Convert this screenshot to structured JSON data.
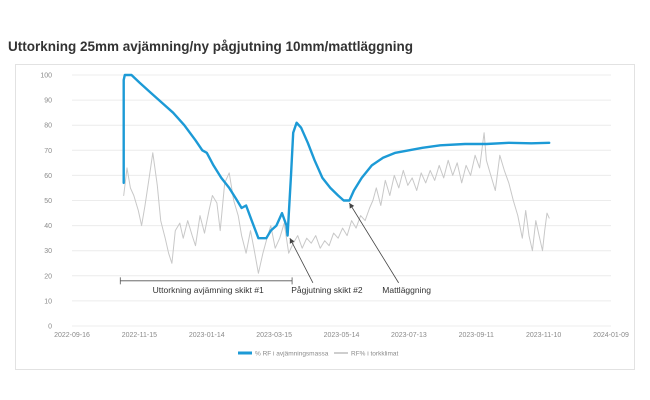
{
  "title": "Uttorkning 25mm avjämning/ny pågjutning 10mm/mattläggning",
  "chart_data": {
    "type": "line",
    "title": "Uttorkning 25mm avjämning/ny pågjutning 10mm/mattläggning",
    "xlabel": "",
    "ylabel": "",
    "xlim": [
      "2022-09-16",
      "2024-01-09"
    ],
    "ylim": [
      0,
      100
    ],
    "grid": true,
    "x_ticks": [
      "2022-09-16",
      "2022-11-15",
      "2023-01-14",
      "2023-03-15",
      "2023-05-14",
      "2023-07-13",
      "2023-09-11",
      "2023-11-10",
      "2024-01-09"
    ],
    "y_ticks": [
      0,
      10,
      20,
      30,
      40,
      50,
      60,
      70,
      80,
      90,
      100
    ],
    "legend_position": "bottom",
    "series": [
      {
        "name": "% RF i avjämningsmassa",
        "color": "#1c9ad6",
        "points": [
          [
            "2022-11-01",
            57
          ],
          [
            "2022-11-01",
            98
          ],
          [
            "2022-11-02",
            100
          ],
          [
            "2022-11-08",
            100
          ],
          [
            "2022-11-15",
            97
          ],
          [
            "2022-11-25",
            93
          ],
          [
            "2022-12-05",
            89
          ],
          [
            "2022-12-15",
            85
          ],
          [
            "2022-12-25",
            80
          ],
          [
            "2023-01-04",
            74
          ],
          [
            "2023-01-10",
            70
          ],
          [
            "2023-01-14",
            69
          ],
          [
            "2023-01-20",
            64
          ],
          [
            "2023-01-27",
            59
          ],
          [
            "2023-02-03",
            55
          ],
          [
            "2023-02-10",
            50
          ],
          [
            "2023-02-14",
            47
          ],
          [
            "2023-02-18",
            48
          ],
          [
            "2023-02-23",
            42
          ],
          [
            "2023-03-01",
            35
          ],
          [
            "2023-03-08",
            35
          ],
          [
            "2023-03-12",
            38
          ],
          [
            "2023-03-17",
            40
          ],
          [
            "2023-03-22",
            45
          ],
          [
            "2023-03-26",
            40
          ],
          [
            "2023-03-27",
            36
          ],
          [
            "2023-03-28",
            44
          ],
          [
            "2023-03-30",
            60
          ],
          [
            "2023-04-01",
            77
          ],
          [
            "2023-04-04",
            81
          ],
          [
            "2023-04-08",
            79
          ],
          [
            "2023-04-14",
            73
          ],
          [
            "2023-04-20",
            66
          ],
          [
            "2023-04-27",
            59
          ],
          [
            "2023-05-04",
            55
          ],
          [
            "2023-05-11",
            52
          ],
          [
            "2023-05-16",
            50
          ],
          [
            "2023-05-21",
            50
          ],
          [
            "2023-05-25",
            54
          ],
          [
            "2023-06-01",
            59
          ],
          [
            "2023-06-10",
            64
          ],
          [
            "2023-06-20",
            67
          ],
          [
            "2023-07-01",
            69
          ],
          [
            "2023-07-13",
            70
          ],
          [
            "2023-07-25",
            71
          ],
          [
            "2023-08-10",
            72
          ],
          [
            "2023-09-01",
            72.5
          ],
          [
            "2023-09-20",
            72.5
          ],
          [
            "2023-10-10",
            73
          ],
          [
            "2023-10-30",
            72.8
          ],
          [
            "2023-11-15",
            73
          ]
        ]
      },
      {
        "name": "RF% i torkklimat",
        "color": "#c8c8c8",
        "points": [
          [
            "2022-11-01",
            52
          ],
          [
            "2022-11-04",
            63
          ],
          [
            "2022-11-07",
            55
          ],
          [
            "2022-11-10",
            52
          ],
          [
            "2022-11-14",
            46
          ],
          [
            "2022-11-17",
            40
          ],
          [
            "2022-11-20",
            48
          ],
          [
            "2022-11-24",
            60
          ],
          [
            "2022-11-27",
            69
          ],
          [
            "2022-12-01",
            56
          ],
          [
            "2022-12-04",
            42
          ],
          [
            "2022-12-08",
            35
          ],
          [
            "2022-12-11",
            29
          ],
          [
            "2022-12-14",
            25
          ],
          [
            "2022-12-17",
            38
          ],
          [
            "2022-12-21",
            41
          ],
          [
            "2022-12-24",
            35
          ],
          [
            "2022-12-28",
            42
          ],
          [
            "2023-01-01",
            36
          ],
          [
            "2023-01-04",
            32
          ],
          [
            "2023-01-08",
            44
          ],
          [
            "2023-01-12",
            37
          ],
          [
            "2023-01-16",
            46
          ],
          [
            "2023-01-19",
            52
          ],
          [
            "2023-01-23",
            49
          ],
          [
            "2023-01-26",
            38
          ],
          [
            "2023-01-30",
            57
          ],
          [
            "2023-02-03",
            61
          ],
          [
            "2023-02-07",
            50
          ],
          [
            "2023-02-11",
            44
          ],
          [
            "2023-02-14",
            36
          ],
          [
            "2023-02-18",
            29
          ],
          [
            "2023-02-22",
            38
          ],
          [
            "2023-02-25",
            31
          ],
          [
            "2023-03-01",
            21
          ],
          [
            "2023-03-05",
            29
          ],
          [
            "2023-03-08",
            34
          ],
          [
            "2023-03-12",
            40
          ],
          [
            "2023-03-16",
            31
          ],
          [
            "2023-03-20",
            35
          ],
          [
            "2023-03-24",
            41
          ],
          [
            "2023-03-28",
            29
          ],
          [
            "2023-04-01",
            33
          ],
          [
            "2023-04-05",
            36
          ],
          [
            "2023-04-09",
            31
          ],
          [
            "2023-04-13",
            35
          ],
          [
            "2023-04-17",
            33
          ],
          [
            "2023-04-21",
            36
          ],
          [
            "2023-04-25",
            31
          ],
          [
            "2023-04-29",
            34
          ],
          [
            "2023-05-03",
            32
          ],
          [
            "2023-05-07",
            37
          ],
          [
            "2023-05-11",
            35
          ],
          [
            "2023-05-15",
            39
          ],
          [
            "2023-05-19",
            36
          ],
          [
            "2023-05-23",
            42
          ],
          [
            "2023-05-27",
            39
          ],
          [
            "2023-05-31",
            44
          ],
          [
            "2023-06-04",
            42
          ],
          [
            "2023-06-08",
            47
          ],
          [
            "2023-06-11",
            50
          ],
          [
            "2023-06-14",
            55
          ],
          [
            "2023-06-18",
            48
          ],
          [
            "2023-06-22",
            58
          ],
          [
            "2023-06-26",
            52
          ],
          [
            "2023-06-30",
            60
          ],
          [
            "2023-07-04",
            55
          ],
          [
            "2023-07-08",
            62
          ],
          [
            "2023-07-12",
            56
          ],
          [
            "2023-07-16",
            59
          ],
          [
            "2023-07-20",
            54
          ],
          [
            "2023-07-24",
            61
          ],
          [
            "2023-07-28",
            57
          ],
          [
            "2023-08-01",
            62
          ],
          [
            "2023-08-05",
            58
          ],
          [
            "2023-08-09",
            64
          ],
          [
            "2023-08-13",
            59
          ],
          [
            "2023-08-17",
            66
          ],
          [
            "2023-08-21",
            60
          ],
          [
            "2023-08-25",
            65
          ],
          [
            "2023-08-29",
            57
          ],
          [
            "2023-09-02",
            64
          ],
          [
            "2023-09-06",
            60
          ],
          [
            "2023-09-10",
            68
          ],
          [
            "2023-09-14",
            63
          ],
          [
            "2023-09-18",
            77
          ],
          [
            "2023-09-20",
            66
          ],
          [
            "2023-09-24",
            60
          ],
          [
            "2023-09-28",
            54
          ],
          [
            "2023-10-02",
            68
          ],
          [
            "2023-10-06",
            62
          ],
          [
            "2023-10-10",
            57
          ],
          [
            "2023-10-14",
            50
          ],
          [
            "2023-10-18",
            44
          ],
          [
            "2023-10-22",
            35
          ],
          [
            "2023-10-25",
            46
          ],
          [
            "2023-10-28",
            36
          ],
          [
            "2023-10-31",
            30
          ],
          [
            "2023-11-03",
            42
          ],
          [
            "2023-11-06",
            36
          ],
          [
            "2023-11-09",
            30
          ],
          [
            "2023-11-11",
            38
          ],
          [
            "2023-11-13",
            45
          ],
          [
            "2023-11-15",
            43
          ]
        ]
      }
    ],
    "annotations": {
      "bracket": {
        "label": "Uttorkning avjämning skikt #1",
        "from": "2022-10-29",
        "to": "2023-03-31",
        "y": 18
      },
      "arrows": [
        {
          "label": "Pågjutning skikt #2",
          "target": [
            "2023-03-29",
            35
          ],
          "label_pos": [
            "2023-05-01",
            14
          ]
        },
        {
          "label": "Mattläggning",
          "target": [
            "2023-05-21",
            49
          ],
          "label_pos": [
            "2023-07-11",
            14
          ]
        }
      ]
    }
  }
}
